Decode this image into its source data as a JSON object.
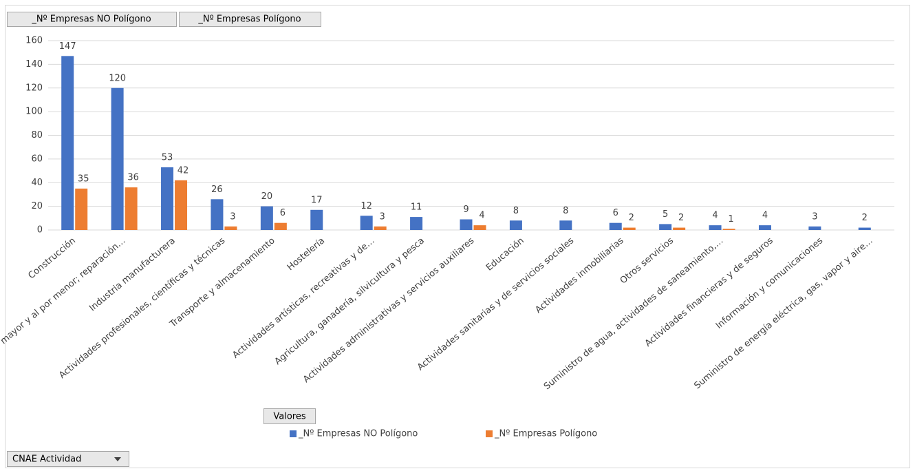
{
  "chart_data": {
    "type": "bar",
    "categories": [
      "Construcción",
      "Comercio al por mayor y al por menor; reparación…",
      "Industria manufacturera",
      "Actividades profesionales, científicas y técnicas",
      "Transporte y almacenamiento",
      "Hostelería",
      "Actividades artísticas, recreativas y de…",
      "Agricultura, ganadería, silvicultura y pesca",
      "Actividades administrativas y servicios auxiliares",
      "Educación",
      "Actividades sanitarias y de servicios sociales",
      "Actividades inmobiliarias",
      "Otros servicios",
      "Suministro de agua, actividades de saneamiento,…",
      "Actividades financieras y de seguros",
      "Información y comunicaciones",
      "Suministro de energía eléctrica, gas, vapor y aire…"
    ],
    "series": [
      {
        "name": "_Nº Empresas NO Polígono",
        "color": "#4472c4",
        "values": [
          147,
          120,
          53,
          26,
          20,
          17,
          12,
          11,
          9,
          8,
          8,
          6,
          5,
          4,
          4,
          3,
          2
        ]
      },
      {
        "name": "_Nº Empresas Polígono",
        "color": "#ed7d31",
        "values": [
          35,
          36,
          42,
          3,
          6,
          null,
          3,
          null,
          4,
          null,
          null,
          2,
          2,
          1,
          null,
          null,
          null
        ]
      }
    ],
    "ylim": [
      0,
      160
    ],
    "yticks": [
      0,
      20,
      40,
      60,
      80,
      100,
      120,
      140,
      160
    ],
    "grid": true,
    "legend": "bottom",
    "value_field_button": "Valores",
    "axis_field_button": "CNAE Actividad"
  }
}
